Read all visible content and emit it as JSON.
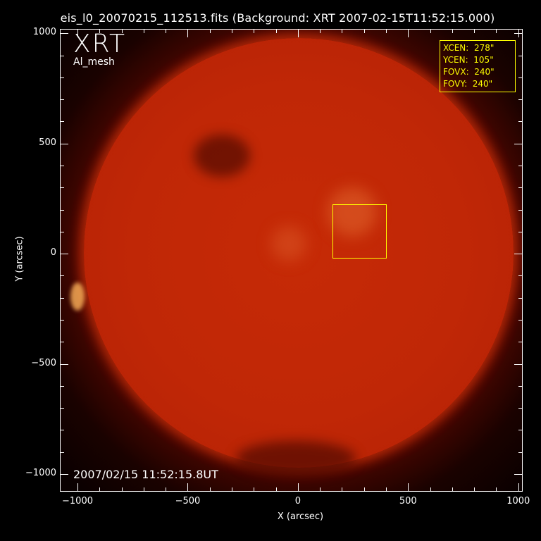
{
  "title": "eis_l0_20070215_112513.fits  (Background: XRT 2007-02-15T11:52:15.000)",
  "instrument_label": "XRT",
  "filter_label": "Al_mesh",
  "timestamp": "2007/02/15 11:52:15.8UT",
  "info_box": {
    "lines": [
      "XCEN:  278\"",
      "YCEN:  105\"",
      "FOVX:  240\"",
      "FOVY:  240\""
    ]
  },
  "colors": {
    "fov_box": "#ffff00",
    "sun": "#c02706",
    "background": "#000000"
  },
  "chart_data": {
    "type": "image",
    "xlabel": "X (arcsec)",
    "ylabel": "Y (arcsec)",
    "xlim": [
      -1080,
      1020
    ],
    "ylim": [
      -1080,
      1020
    ],
    "xticks": [
      -1000,
      -500,
      0,
      500,
      1000
    ],
    "yticks": [
      -1000,
      -500,
      0,
      500,
      1000
    ],
    "xtick_labels": [
      "−1000",
      "−500",
      "0",
      "500",
      "1000"
    ],
    "ytick_labels": [
      "−1000",
      "−500",
      "0",
      "500",
      "1000"
    ],
    "fov_box": {
      "xcen": 278,
      "ycen": 105,
      "fovx": 240,
      "fovy": 240
    }
  }
}
